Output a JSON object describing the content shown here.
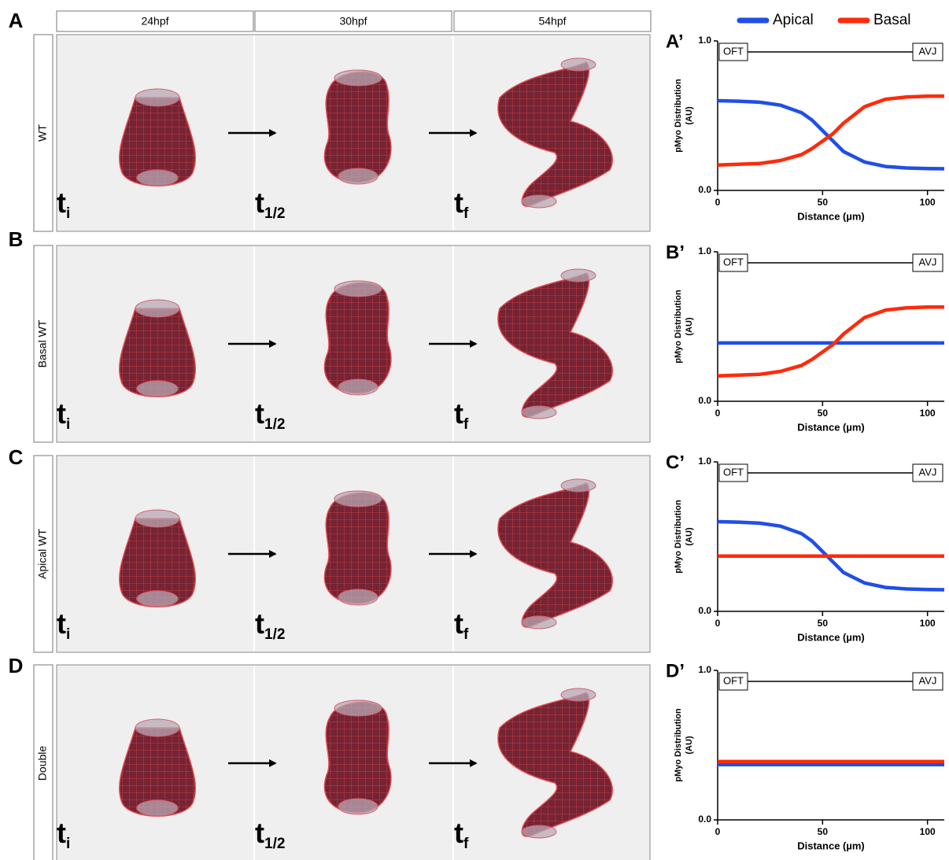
{
  "figure": {
    "panel_letters": [
      "A",
      "B",
      "C",
      "D"
    ],
    "columns": [
      "24hpf",
      "30hpf",
      "54hpf"
    ],
    "rows": [
      "WT",
      "Basal WT",
      "Apical WT",
      "Double"
    ],
    "time_labels": [
      {
        "t": "t",
        "sub": "i"
      },
      {
        "t": "t",
        "sub": "1/2"
      },
      {
        "t": "t",
        "sub": "f"
      }
    ]
  },
  "chart_data": [
    {
      "type": "line",
      "panel_label": "A’",
      "ylabel": [
        "pMyo Distribution",
        "(AU)"
      ],
      "xlabel": "Distance (µm)",
      "annotations": [
        "OFT",
        "AVJ"
      ],
      "xlim": [
        0,
        108
      ],
      "xticks": [
        0,
        50,
        100
      ],
      "ylim": [
        0,
        1
      ],
      "yticks": [
        {
          "value": 0,
          "label": "0.0"
        },
        {
          "value": 1,
          "label": "1.0"
        }
      ],
      "x": [
        0,
        10,
        20,
        30,
        40,
        45,
        50,
        55,
        60,
        70,
        80,
        90,
        100,
        108
      ],
      "series": [
        {
          "name": "Apical",
          "color": "#1f4fe6",
          "values": [
            0.6,
            0.597,
            0.59,
            0.57,
            0.52,
            0.47,
            0.4,
            0.33,
            0.26,
            0.19,
            0.16,
            0.15,
            0.146,
            0.145
          ]
        },
        {
          "name": "Basal",
          "color": "#ff2a0a",
          "values": [
            0.17,
            0.175,
            0.18,
            0.2,
            0.24,
            0.28,
            0.33,
            0.38,
            0.45,
            0.56,
            0.61,
            0.625,
            0.63,
            0.63
          ]
        }
      ]
    },
    {
      "type": "line",
      "panel_label": "B’",
      "ylabel": [
        "pMyo Distribution",
        "(AU)"
      ],
      "xlabel": "Distance (µm)",
      "annotations": [
        "OFT",
        "AVJ"
      ],
      "xlim": [
        0,
        108
      ],
      "xticks": [
        0,
        50,
        100
      ],
      "ylim": [
        0,
        1
      ],
      "yticks": [
        {
          "value": 0,
          "label": "0.0"
        },
        {
          "value": 1,
          "label": "1.0"
        }
      ],
      "x": [
        0,
        10,
        20,
        30,
        40,
        45,
        50,
        55,
        60,
        70,
        80,
        90,
        100,
        108
      ],
      "series": [
        {
          "color": "#1f4fe6",
          "values": [
            0.39,
            0.39,
            0.39,
            0.39,
            0.39,
            0.39,
            0.39,
            0.39,
            0.39,
            0.39,
            0.39,
            0.39,
            0.39,
            0.39
          ]
        },
        {
          "color": "#ff2a0a",
          "values": [
            0.17,
            0.175,
            0.18,
            0.2,
            0.24,
            0.28,
            0.33,
            0.38,
            0.45,
            0.56,
            0.61,
            0.625,
            0.63,
            0.63
          ]
        }
      ]
    },
    {
      "type": "line",
      "panel_label": "C’",
      "ylabel": [
        "pMyo Distribution",
        "(AU)"
      ],
      "xlabel": "Distance (µm)",
      "annotations": [
        "OFT",
        "AVJ"
      ],
      "xlim": [
        0,
        108
      ],
      "xticks": [
        0,
        50,
        100
      ],
      "ylim": [
        0,
        1
      ],
      "yticks": [
        {
          "value": 0,
          "label": "0.0"
        },
        {
          "value": 1,
          "label": "1.0"
        }
      ],
      "x": [
        0,
        10,
        20,
        30,
        40,
        45,
        50,
        55,
        60,
        70,
        80,
        90,
        100,
        108
      ],
      "series": [
        {
          "color": "#1f4fe6",
          "values": [
            0.6,
            0.597,
            0.59,
            0.57,
            0.52,
            0.47,
            0.4,
            0.33,
            0.26,
            0.19,
            0.16,
            0.15,
            0.146,
            0.145
          ]
        },
        {
          "color": "#ff2a0a",
          "values": [
            0.37,
            0.37,
            0.37,
            0.37,
            0.37,
            0.37,
            0.37,
            0.37,
            0.37,
            0.37,
            0.37,
            0.37,
            0.37,
            0.37
          ]
        }
      ]
    },
    {
      "type": "line",
      "panel_label": "D’",
      "ylabel": [
        "pMyo Distribution",
        "(AU)"
      ],
      "xlabel": "Distance (µm)",
      "annotations": [
        "OFT",
        "AVJ"
      ],
      "xlim": [
        0,
        108
      ],
      "xticks": [
        0,
        50,
        100
      ],
      "ylim": [
        0,
        1
      ],
      "yticks": [
        {
          "value": 0,
          "label": "0.0"
        },
        {
          "value": 1,
          "label": "1.0"
        }
      ],
      "x": [
        0,
        10,
        20,
        30,
        40,
        45,
        50,
        55,
        60,
        70,
        80,
        90,
        100,
        108
      ],
      "series": [
        {
          "color": "#1f4fe6",
          "values": [
            0.37,
            0.37,
            0.37,
            0.37,
            0.37,
            0.37,
            0.37,
            0.37,
            0.37,
            0.37,
            0.37,
            0.37,
            0.37,
            0.37
          ]
        },
        {
          "color": "#ff2a0a",
          "values": [
            0.39,
            0.39,
            0.39,
            0.39,
            0.39,
            0.39,
            0.39,
            0.39,
            0.39,
            0.39,
            0.39,
            0.39,
            0.39,
            0.39
          ]
        }
      ]
    }
  ]
}
